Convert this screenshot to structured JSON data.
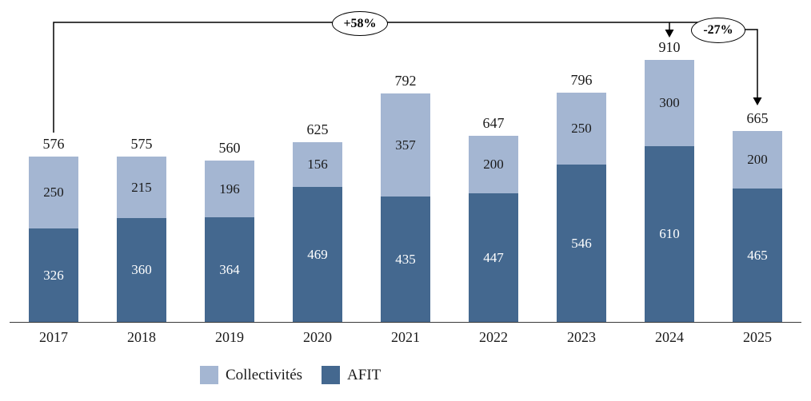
{
  "chart_data": {
    "type": "bar",
    "stacked": true,
    "title": "",
    "xlabel": "",
    "ylabel": "",
    "ylim": [
      0,
      910
    ],
    "grid": false,
    "legend_position": "bottom",
    "categories": [
      "2017",
      "2018",
      "2019",
      "2020",
      "2021",
      "2022",
      "2023",
      "2024",
      "2025"
    ],
    "series": [
      {
        "name": "AFIT",
        "color": "#44688f",
        "values": [
          326,
          360,
          364,
          469,
          435,
          447,
          546,
          610,
          465
        ]
      },
      {
        "name": "Collectivités",
        "color": "#a4b6d2",
        "values": [
          250,
          215,
          196,
          156,
          357,
          200,
          250,
          300,
          200
        ]
      }
    ],
    "totals": [
      576,
      575,
      560,
      625,
      792,
      647,
      796,
      910,
      665
    ],
    "annotations": [
      {
        "label": "+58%",
        "from": "2017",
        "to": "2024"
      },
      {
        "label": "-27%",
        "from": "2024",
        "to": "2025"
      }
    ],
    "legend": [
      "Collectivités",
      "AFIT"
    ]
  },
  "colors": {
    "afit": "#44688f",
    "collectivites": "#a4b6d2",
    "line": "#000000"
  }
}
